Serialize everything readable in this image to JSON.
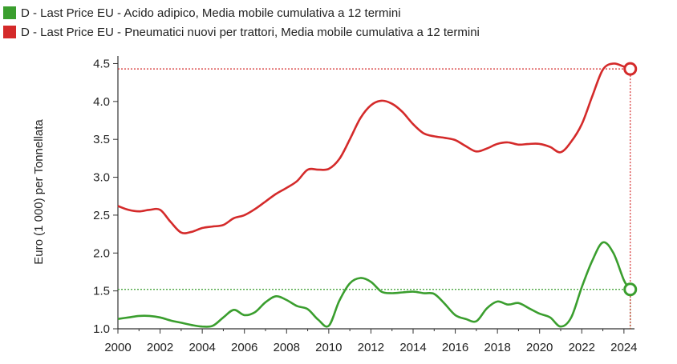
{
  "chart_data": {
    "type": "line",
    "title": "",
    "xlabel": "",
    "ylabel": "Euro (1 000) per Tonnellata",
    "xlim": [
      2000,
      2024.5
    ],
    "ylim": [
      1.0,
      4.6
    ],
    "x_ticks": [
      "2000",
      "2002",
      "2004",
      "2006",
      "2008",
      "2010",
      "2012",
      "2014",
      "2016",
      "2018",
      "2020",
      "2022",
      "2024"
    ],
    "y_ticks": [
      "1.0",
      "1.5",
      "2.0",
      "2.5",
      "3.0",
      "3.5",
      "4.0",
      "4.5"
    ],
    "grid": false,
    "legend_position": "top-left",
    "series": [
      {
        "name": "D - Last Price EU - Acido adipico, Media mobile cumulativa a 12 termini",
        "color": "#3a9e2e",
        "x": [
          2000,
          2000.5,
          2001,
          2001.5,
          2002,
          2002.5,
          2003,
          2003.5,
          2004,
          2004.5,
          2005,
          2005.5,
          2006,
          2006.5,
          2007,
          2007.5,
          2008,
          2008.5,
          2009,
          2009.5,
          2010,
          2010.5,
          2011,
          2011.5,
          2012,
          2012.5,
          2013,
          2013.5,
          2014,
          2014.5,
          2015,
          2015.5,
          2016,
          2016.5,
          2017,
          2017.5,
          2018,
          2018.5,
          2019,
          2019.5,
          2020,
          2020.5,
          2021,
          2021.5,
          2022,
          2022.5,
          2023,
          2023.5,
          2024,
          2024.3
        ],
        "values": [
          1.13,
          1.15,
          1.17,
          1.17,
          1.15,
          1.11,
          1.08,
          1.05,
          1.03,
          1.04,
          1.15,
          1.25,
          1.18,
          1.22,
          1.35,
          1.43,
          1.38,
          1.3,
          1.26,
          1.12,
          1.04,
          1.37,
          1.6,
          1.67,
          1.62,
          1.49,
          1.47,
          1.48,
          1.49,
          1.47,
          1.46,
          1.33,
          1.18,
          1.13,
          1.1,
          1.27,
          1.36,
          1.32,
          1.34,
          1.27,
          1.2,
          1.15,
          1.03,
          1.15,
          1.55,
          1.9,
          2.14,
          2.0,
          1.64,
          1.52
        ]
      },
      {
        "name": "D - Last Price EU - Pneumatici nuovi per trattori, Media mobile cumulativa a 12 termini",
        "color": "#d42a2a",
        "x": [
          2000,
          2000.5,
          2001,
          2001.5,
          2002,
          2002.5,
          2003,
          2003.5,
          2004,
          2004.5,
          2005,
          2005.5,
          2006,
          2006.5,
          2007,
          2007.5,
          2008,
          2008.5,
          2009,
          2009.5,
          2010,
          2010.5,
          2011,
          2011.5,
          2012,
          2012.5,
          2013,
          2013.5,
          2014,
          2014.5,
          2015,
          2015.5,
          2016,
          2016.5,
          2017,
          2017.5,
          2018,
          2018.5,
          2019,
          2019.5,
          2020,
          2020.5,
          2021,
          2021.5,
          2022,
          2022.5,
          2023,
          2023.5,
          2024,
          2024.3
        ],
        "values": [
          2.62,
          2.57,
          2.55,
          2.57,
          2.57,
          2.41,
          2.27,
          2.28,
          2.33,
          2.35,
          2.37,
          2.46,
          2.5,
          2.58,
          2.68,
          2.78,
          2.86,
          2.95,
          3.1,
          3.1,
          3.11,
          3.24,
          3.5,
          3.78,
          3.95,
          4.01,
          3.97,
          3.86,
          3.7,
          3.58,
          3.54,
          3.52,
          3.49,
          3.41,
          3.34,
          3.38,
          3.44,
          3.46,
          3.43,
          3.44,
          3.44,
          3.4,
          3.33,
          3.47,
          3.7,
          4.07,
          4.42,
          4.5,
          4.46,
          4.43
        ]
      }
    ]
  }
}
